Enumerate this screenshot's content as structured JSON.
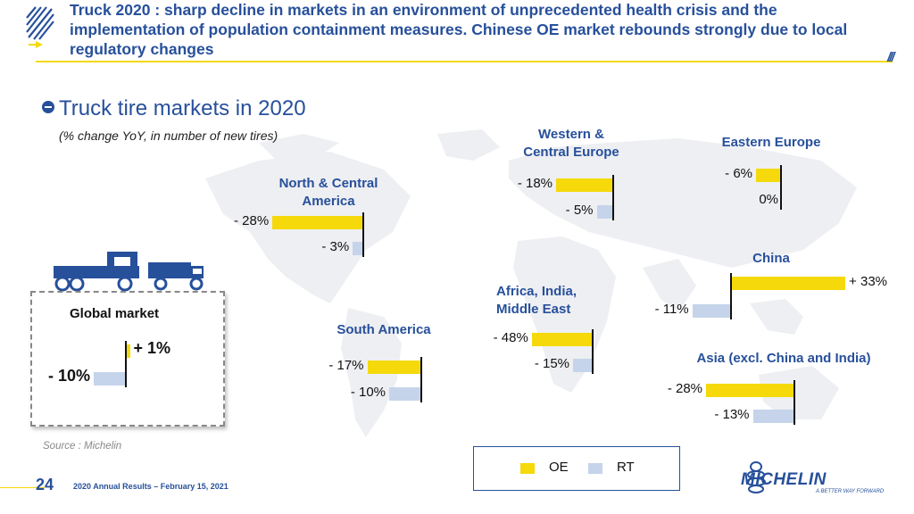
{
  "header": {
    "title": "Truck 2020 : sharp decline in markets in an environment of unprecedented health crisis and the implementation of population containment measures. Chinese OE market rebounds strongly due to local regulatory changes",
    "slashes": "///"
  },
  "section": {
    "title": "Truck tire markets in 2020",
    "subtitle": "(% change YoY, in number of new tires)"
  },
  "regions": {
    "na": {
      "name_1": "North & Central",
      "name_2": "America",
      "oe_label": "- 28%",
      "rt_label": "- 3%"
    },
    "sa": {
      "name": "South America",
      "oe_label": "- 17%",
      "rt_label": "- 10%"
    },
    "wce": {
      "name_1": "Western &",
      "name_2": "Central Europe",
      "oe_label": "- 18%",
      "rt_label": "- 5%"
    },
    "ee": {
      "name": "Eastern Europe",
      "oe_label": "- 6%",
      "rt_label": "0%"
    },
    "aime": {
      "name_1": "Africa, India,",
      "name_2": "Middle East",
      "oe_label": "- 48%",
      "rt_label": "- 15%"
    },
    "china": {
      "name": "China",
      "oe_label": "+ 33%",
      "rt_label": "- 11%"
    },
    "asia": {
      "name": "Asia (excl. China and India)",
      "oe_label": "- 28%",
      "rt_label": "- 13%"
    },
    "global": {
      "name": "Global market",
      "oe_label": "+ 1%",
      "rt_label": "- 10%"
    }
  },
  "chart_data": {
    "type": "bar",
    "title": "Truck tire markets in 2020",
    "subtitle": "(% change YoY, in number of new tires)",
    "categories": [
      "North & Central America",
      "South America",
      "Western & Central Europe",
      "Eastern Europe",
      "Africa, India, Middle East",
      "China",
      "Asia (excl. China and India)",
      "Global market"
    ],
    "series": [
      {
        "name": "OE",
        "values": [
          -28,
          -17,
          -18,
          -6,
          -48,
          33,
          -28,
          1
        ]
      },
      {
        "name": "RT",
        "values": [
          -3,
          -10,
          -5,
          0,
          -15,
          -11,
          -13,
          -10
        ]
      }
    ],
    "colors": {
      "OE": "#f5d90a",
      "RT": "#c5d4ea"
    },
    "legend_position": "bottom"
  },
  "legend": {
    "oe": "OE",
    "rt": "RT"
  },
  "source": "Source : Michelin",
  "footer": {
    "page": "24",
    "text": "2020 Annual Results – February 15, 2021"
  },
  "brand": {
    "name": "MICHELIN",
    "tagline": "A BETTER WAY FORWARD"
  },
  "colors": {
    "accent_blue": "#27509b",
    "accent_yellow": "#f5d90a",
    "rt_blue": "#c5d4ea"
  }
}
